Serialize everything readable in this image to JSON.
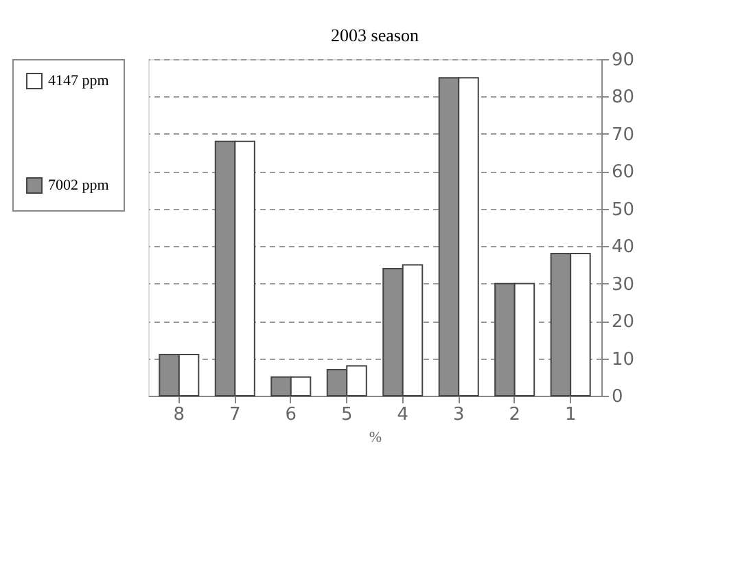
{
  "chart_data": {
    "type": "bar",
    "title": "2003 season",
    "xlabel": "%",
    "categories": [
      "8",
      "7",
      "6",
      "5",
      "4",
      "3",
      "2",
      "1"
    ],
    "series": [
      {
        "name": "7002 ppm",
        "color": "#8c8c8c",
        "values": [
          11,
          68,
          5,
          7,
          34,
          85,
          30,
          38
        ]
      },
      {
        "name": "4147 ppm",
        "color": "#ffffff",
        "values": [
          11,
          68,
          5,
          8,
          35,
          85,
          30,
          38
        ]
      }
    ],
    "ylim": [
      0,
      90
    ],
    "yticks": [
      0,
      10,
      20,
      30,
      40,
      50,
      60,
      70,
      80,
      90
    ],
    "grid": "y",
    "legend": "left"
  }
}
